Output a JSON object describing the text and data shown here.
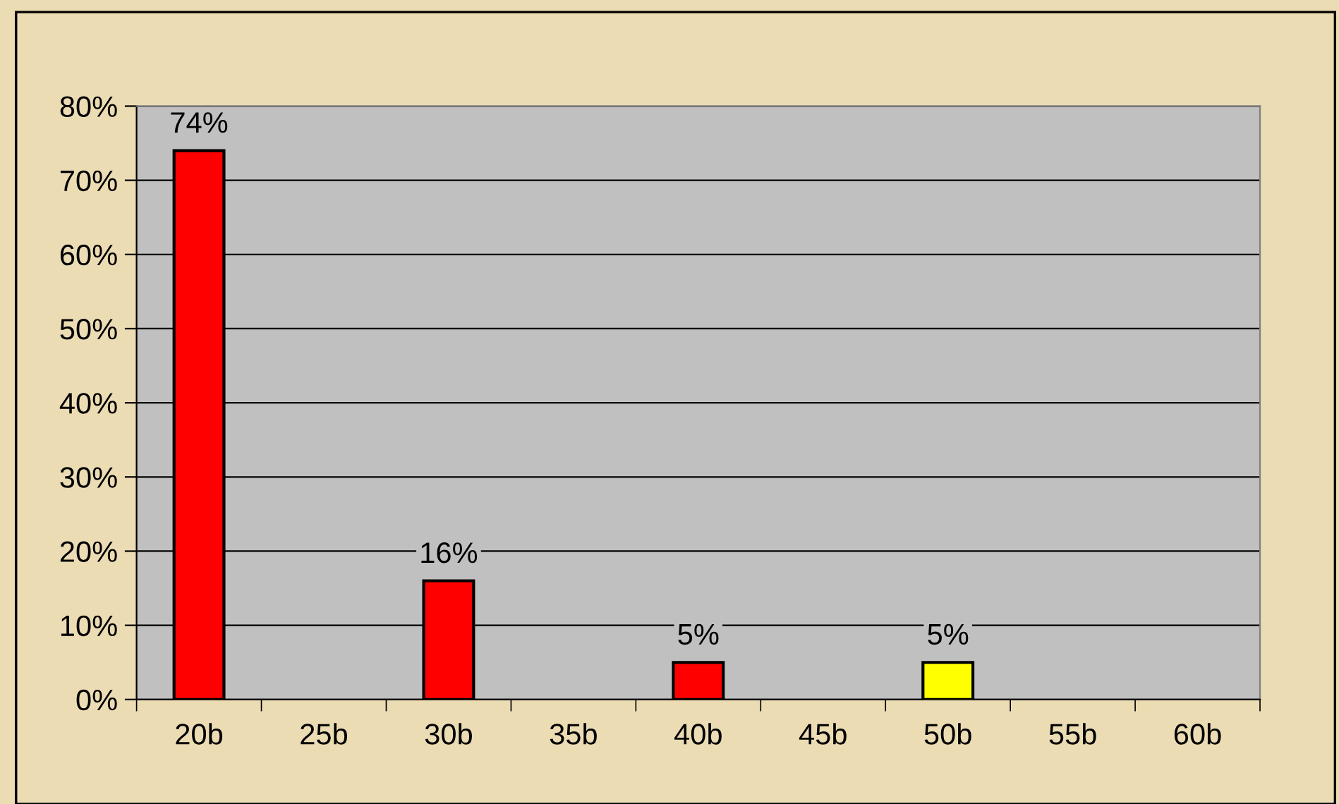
{
  "chart_data": {
    "type": "bar",
    "categories": [
      "20b",
      "25b",
      "30b",
      "35b",
      "40b",
      "45b",
      "50b",
      "55b",
      "60b"
    ],
    "values": [
      74,
      null,
      16,
      null,
      5,
      null,
      5,
      null,
      null
    ],
    "colors": [
      "#ff0000",
      "#ff0000",
      "#ff0000",
      "#ff0000",
      "#ff0000",
      "#ff0000",
      "#ffff00",
      "#ff0000",
      "#ff0000"
    ],
    "value_labels": [
      "74%",
      null,
      "16%",
      null,
      "5%",
      null,
      "5%",
      null,
      null
    ],
    "ylim": [
      0,
      80
    ],
    "yticks": [
      {
        "value": 0,
        "label": "0%"
      },
      {
        "value": 10,
        "label": "10%"
      },
      {
        "value": 20,
        "label": "20%"
      },
      {
        "value": 30,
        "label": "30%"
      },
      {
        "value": 40,
        "label": "40%"
      },
      {
        "value": 50,
        "label": "50%"
      },
      {
        "value": 60,
        "label": "60%"
      },
      {
        "value": 70,
        "label": "70%"
      },
      {
        "value": 80,
        "label": "80%"
      }
    ],
    "grid": "y"
  }
}
